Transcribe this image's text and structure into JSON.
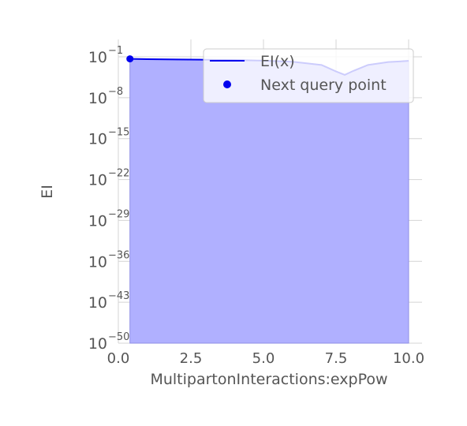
{
  "chart_data": {
    "type": "area",
    "xlabel": "MultipartonInteractions:expPow",
    "ylabel": "EI",
    "xlim": [
      0,
      10
    ],
    "ylim": [
      1e-50,
      0.1
    ],
    "yscale": "log",
    "grid": true,
    "legend_position": "top-right",
    "x_ticks": [
      "0.0",
      "2.5",
      "5.0",
      "7.5",
      "10.0"
    ],
    "x_tick_values": [
      0,
      2.5,
      5,
      7.5,
      10
    ],
    "y_ticks": [
      {
        "base": "10",
        "exp": "−1",
        "value": -1
      },
      {
        "base": "10",
        "exp": "−8",
        "value": -8
      },
      {
        "base": "10",
        "exp": "−15",
        "value": -15
      },
      {
        "base": "10",
        "exp": "−22",
        "value": -22
      },
      {
        "base": "10",
        "exp": "−29",
        "value": -29
      },
      {
        "base": "10",
        "exp": "−36",
        "value": -36
      },
      {
        "base": "10",
        "exp": "−43",
        "value": -43
      },
      {
        "base": "10",
        "exp": "−50",
        "value": -50
      }
    ],
    "series": [
      {
        "name": "EI(x)",
        "color": "#0000ee",
        "fill_color": "#b0b0ff",
        "log10_values": [
          {
            "x": 0.4,
            "y": -1.35
          },
          {
            "x": 1.0,
            "y": -1.4
          },
          {
            "x": 2.0,
            "y": -1.45
          },
          {
            "x": 3.0,
            "y": -1.5
          },
          {
            "x": 4.0,
            "y": -1.55
          },
          {
            "x": 5.0,
            "y": -1.65
          },
          {
            "x": 6.0,
            "y": -1.85
          },
          {
            "x": 7.0,
            "y": -2.4
          },
          {
            "x": 7.5,
            "y": -3.5
          },
          {
            "x": 7.8,
            "y": -4.1
          },
          {
            "x": 8.1,
            "y": -3.4
          },
          {
            "x": 8.6,
            "y": -2.4
          },
          {
            "x": 9.3,
            "y": -1.9
          },
          {
            "x": 10.0,
            "y": -1.7
          }
        ]
      }
    ],
    "next_query_point": {
      "name": "Next query point",
      "x": 0.4,
      "y_log10": -1.35,
      "color": "#0000ee"
    }
  }
}
